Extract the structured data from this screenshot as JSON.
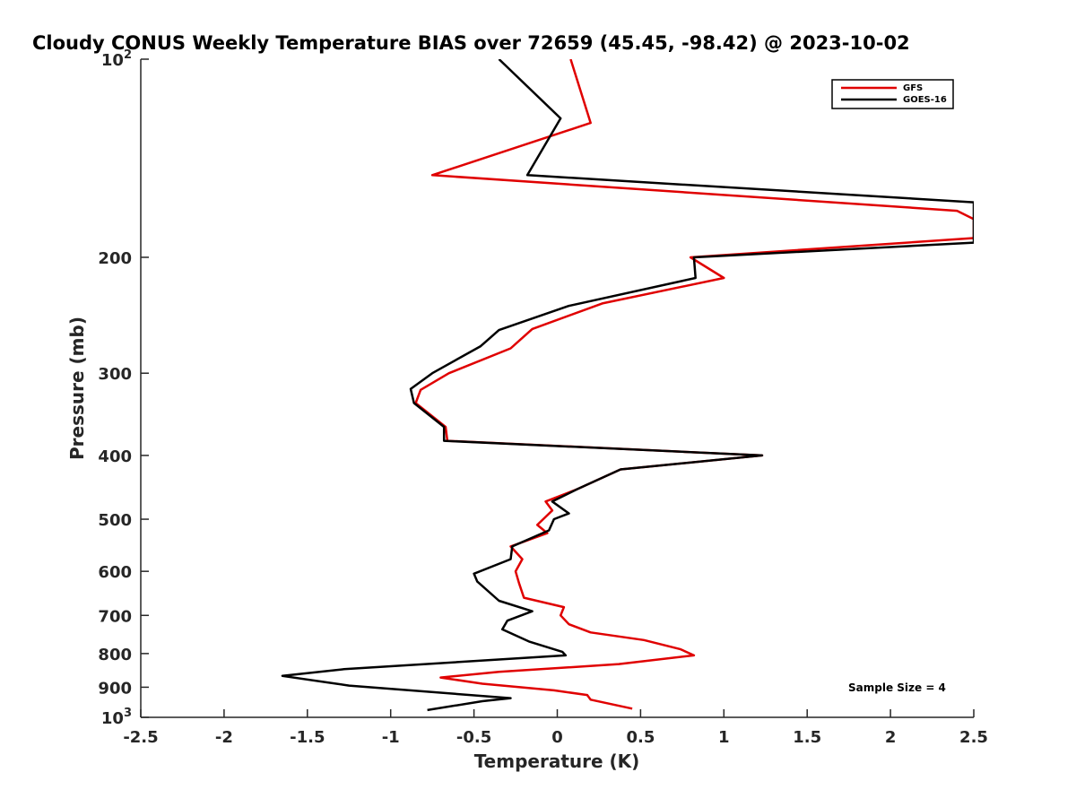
{
  "chart_data": {
    "type": "line",
    "title": "Cloudy CONUS Weekly Temperature BIAS over 72659 (45.45, -98.42) @ 2023-10-02",
    "xlabel": "Temperature (K)",
    "ylabel": "Pressure (mb)",
    "xlim": [
      -2.5,
      2.5
    ],
    "ylim": [
      100,
      1000
    ],
    "y_scale": "log",
    "y_reversed": true,
    "grid": false,
    "legend_position": "top-right",
    "x_ticks": [
      "-2.5",
      "-2",
      "-1.5",
      "-1",
      "-0.5",
      "0",
      "0.5",
      "1",
      "1.5",
      "2",
      "2.5"
    ],
    "x_tick_values": [
      -2.5,
      -2,
      -1.5,
      -1,
      -0.5,
      0,
      0.5,
      1,
      1.5,
      2,
      2.5
    ],
    "y_ticks": [
      {
        "value": 100,
        "base": "10",
        "exp": "2"
      },
      {
        "value": 200,
        "label": "200"
      },
      {
        "value": 300,
        "label": "300"
      },
      {
        "value": 400,
        "label": "400"
      },
      {
        "value": 500,
        "label": "500"
      },
      {
        "value": 600,
        "label": "600"
      },
      {
        "value": 700,
        "label": "700"
      },
      {
        "value": 800,
        "label": "800"
      },
      {
        "value": 900,
        "label": "900"
      },
      {
        "value": 1000,
        "base": "10",
        "exp": "3"
      }
    ],
    "series": [
      {
        "name": "GFS",
        "color": "#e00000",
        "points": [
          [
            0.08,
            100
          ],
          [
            0.2,
            125
          ],
          [
            -0.75,
            150
          ],
          [
            2.4,
            170
          ],
          [
            2.5,
            175
          ],
          [
            2.5,
            187
          ],
          [
            0.8,
            200
          ],
          [
            1.0,
            215
          ],
          [
            0.27,
            235
          ],
          [
            -0.15,
            257
          ],
          [
            -0.28,
            275
          ],
          [
            -0.65,
            300
          ],
          [
            -0.82,
            318
          ],
          [
            -0.85,
            333
          ],
          [
            -0.67,
            362
          ],
          [
            -0.66,
            380
          ],
          [
            1.23,
            400
          ],
          [
            0.38,
            420
          ],
          [
            0.12,
            450
          ],
          [
            -0.07,
            470
          ],
          [
            -0.03,
            485
          ],
          [
            -0.12,
            510
          ],
          [
            -0.06,
            525
          ],
          [
            -0.28,
            550
          ],
          [
            -0.21,
            575
          ],
          [
            -0.25,
            600
          ],
          [
            -0.23,
            625
          ],
          [
            -0.2,
            658
          ],
          [
            0.04,
            680
          ],
          [
            0.02,
            700
          ],
          [
            0.07,
            722
          ],
          [
            0.2,
            743
          ],
          [
            0.52,
            763
          ],
          [
            0.74,
            788
          ],
          [
            0.82,
            805
          ],
          [
            0.37,
            830
          ],
          [
            -0.35,
            853
          ],
          [
            -0.7,
            870
          ],
          [
            -0.45,
            889
          ],
          [
            -0.02,
            910
          ],
          [
            0.18,
            925
          ],
          [
            0.2,
            940
          ],
          [
            0.45,
            970
          ]
        ]
      },
      {
        "name": "GOES-16",
        "color": "#000000",
        "points": [
          [
            -0.35,
            100
          ],
          [
            0.02,
            123
          ],
          [
            -0.18,
            150
          ],
          [
            2.5,
            165
          ],
          [
            2.5,
            190
          ],
          [
            0.82,
            200
          ],
          [
            0.83,
            215
          ],
          [
            0.07,
            237
          ],
          [
            -0.35,
            258
          ],
          [
            -0.46,
            273
          ],
          [
            -0.75,
            300
          ],
          [
            -0.88,
            317
          ],
          [
            -0.86,
            333
          ],
          [
            -0.68,
            362
          ],
          [
            -0.68,
            380
          ],
          [
            1.23,
            400
          ],
          [
            0.38,
            420
          ],
          [
            0.12,
            450
          ],
          [
            -0.03,
            470
          ],
          [
            0.07,
            490
          ],
          [
            -0.02,
            500
          ],
          [
            -0.05,
            520
          ],
          [
            -0.27,
            550
          ],
          [
            -0.28,
            575
          ],
          [
            -0.5,
            605
          ],
          [
            -0.48,
            622
          ],
          [
            -0.35,
            665
          ],
          [
            -0.15,
            690
          ],
          [
            -0.3,
            713
          ],
          [
            -0.33,
            735
          ],
          [
            -0.17,
            767
          ],
          [
            0.03,
            795
          ],
          [
            0.05,
            805
          ],
          [
            -1.28,
            845
          ],
          [
            -1.65,
            865
          ],
          [
            -1.25,
            895
          ],
          [
            -0.28,
            935
          ],
          [
            -0.45,
            945
          ],
          [
            -0.78,
            975
          ]
        ]
      }
    ],
    "annotation": "Sample Size = 4"
  }
}
